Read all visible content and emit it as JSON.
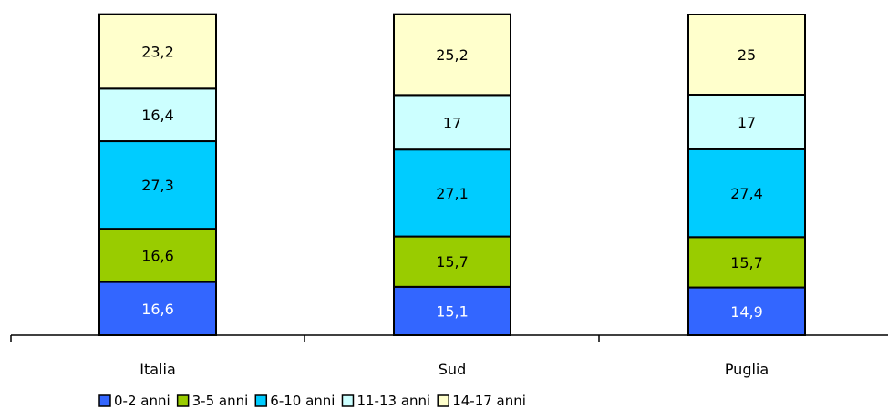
{
  "chart_data": {
    "type": "bar",
    "stacked": true,
    "normalized_to": 100,
    "categories": [
      "Italia",
      "Sud",
      "Puglia"
    ],
    "series": [
      {
        "name": "0-2 anni",
        "color": "#3366ff",
        "text_color": "#ffffff",
        "values": [
          16.6,
          15.1,
          14.9
        ],
        "labels": [
          "16,6",
          "15,1",
          "14,9"
        ]
      },
      {
        "name": "3-5 anni",
        "color": "#99cc00",
        "text_color": "#000000",
        "values": [
          16.6,
          15.7,
          15.7
        ],
        "labels": [
          "16,6",
          "15,7",
          "15,7"
        ]
      },
      {
        "name": "6-10 anni",
        "color": "#00ccff",
        "text_color": "#000000",
        "values": [
          27.3,
          27.1,
          27.4
        ],
        "labels": [
          "27,3",
          "27,1",
          "27,4"
        ]
      },
      {
        "name": "11-13 anni",
        "color": "#ccffff",
        "text_color": "#000000",
        "values": [
          16.4,
          17,
          17
        ],
        "labels": [
          "16,4",
          "17",
          "17"
        ]
      },
      {
        "name": "14-17 anni",
        "color": "#ffffcc",
        "text_color": "#000000",
        "values": [
          23.2,
          25.2,
          25
        ],
        "labels": [
          "23,2",
          "25,2",
          "25"
        ]
      }
    ],
    "legend_position": "bottom",
    "grid": false
  }
}
